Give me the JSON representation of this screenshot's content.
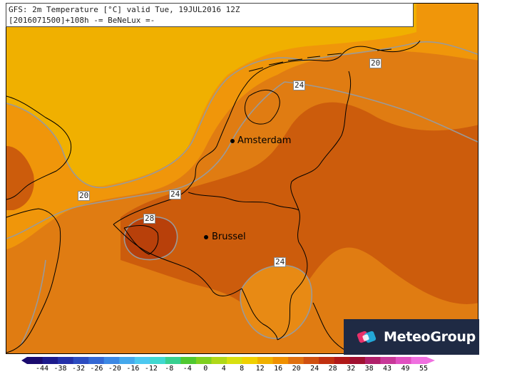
{
  "title": {
    "line1": "GFS: 2m Temperature [°C] valid Tue, 19JUL2016 12Z",
    "line2": "[2016071500]+108h -= BeNeLux =-"
  },
  "cities": [
    {
      "name": "Amsterdam"
    },
    {
      "name": "Brussel"
    }
  ],
  "isotherm_labels": [
    "20",
    "24",
    "20",
    "24",
    "28",
    "24"
  ],
  "brand": {
    "name": "MeteoGroup",
    "logo": "meteogroup-logo-icon"
  },
  "legend": {
    "ticks": [
      "-44",
      "-38",
      "-32",
      "-26",
      "-20",
      "-16",
      "-12",
      "-8",
      "-4",
      "0",
      "4",
      "8",
      "12",
      "16",
      "20",
      "24",
      "28",
      "32",
      "38",
      "43",
      "49",
      "55"
    ]
  },
  "colors": {
    "cool": "#f0b000",
    "warm_light": "#f0960a",
    "warm": "#e07c12",
    "hot": "#cc5c0c",
    "hottest": "#b8400a",
    "isotherm": "#9a9a9a",
    "brand_bg": "#1f2a44"
  }
}
